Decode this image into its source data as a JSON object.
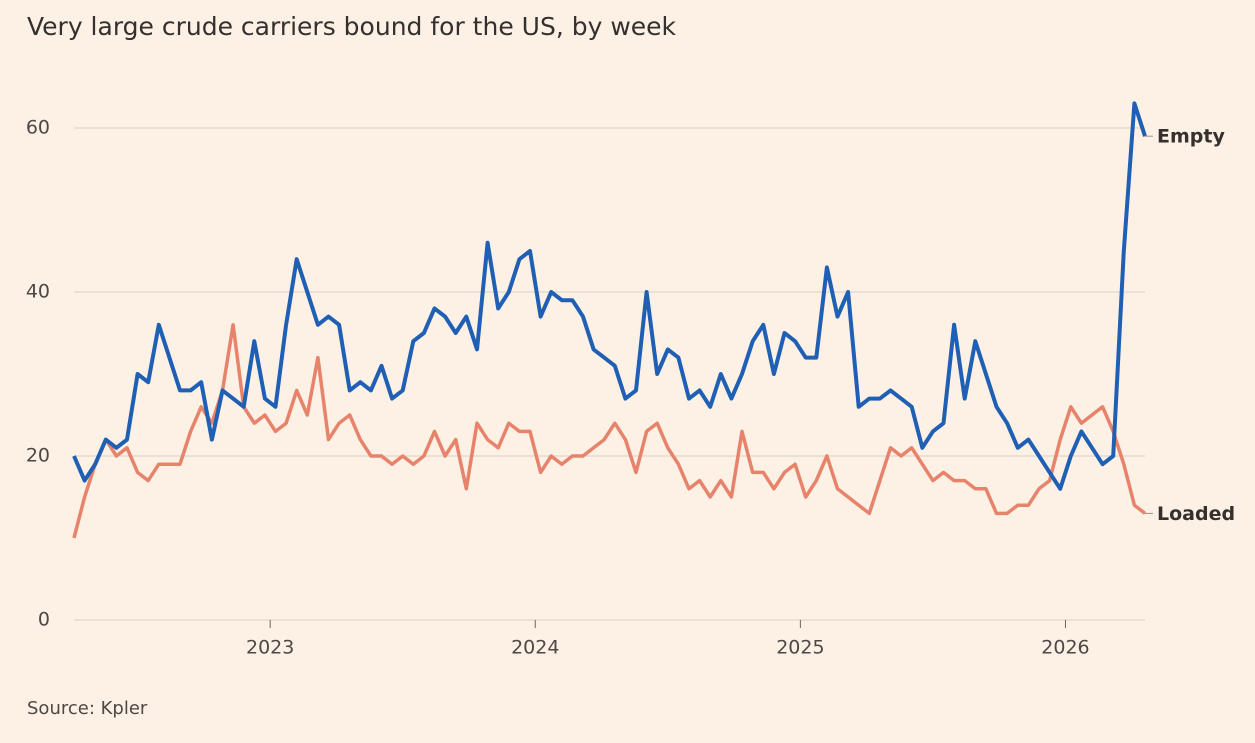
{
  "chart_data": {
    "type": "line",
    "title": "Very large crude carriers bound for the US, by week",
    "source": "Source: Kpler",
    "x": [
      2022.26,
      2022.3,
      2022.34,
      2022.38,
      2022.42,
      2022.46,
      2022.5,
      2022.54,
      2022.58,
      2022.62,
      2022.66,
      2022.7,
      2022.74,
      2022.78,
      2022.82,
      2022.86,
      2022.9,
      2022.94,
      2022.98,
      2023.02,
      2023.06,
      2023.1,
      2023.14,
      2023.18,
      2023.22,
      2023.26,
      2023.3,
      2023.34,
      2023.38,
      2023.42,
      2023.46,
      2023.5,
      2023.54,
      2023.58,
      2023.62,
      2023.66,
      2023.7,
      2023.74,
      2023.78,
      2023.82,
      2023.86,
      2023.9,
      2023.94,
      2023.98,
      2024.02,
      2024.06,
      2024.1,
      2024.14,
      2024.18,
      2024.22,
      2024.26,
      2024.3,
      2024.34,
      2024.38,
      2024.42,
      2024.46,
      2024.5,
      2024.54,
      2024.58,
      2024.62,
      2024.66,
      2024.7,
      2024.74,
      2024.78,
      2024.82,
      2024.86,
      2024.9,
      2024.94,
      2024.98,
      2025.02,
      2025.06,
      2025.1,
      2025.14,
      2025.18,
      2025.22,
      2025.26,
      2025.3,
      2025.34,
      2025.38,
      2025.42,
      2025.46,
      2025.5,
      2025.54,
      2025.58,
      2025.62,
      2025.66,
      2025.7,
      2025.74,
      2025.78,
      2025.82,
      2025.86,
      2025.9,
      2025.94,
      2025.98,
      2026.02,
      2026.06,
      2026.1,
      2026.14,
      2026.18,
      2026.22,
      2026.26,
      2026.3
    ],
    "series": [
      {
        "name": "Loaded",
        "color": "#e8836b",
        "values": [
          10,
          15,
          19,
          22,
          20,
          21,
          18,
          17,
          19,
          19,
          19,
          23,
          26,
          24,
          28,
          36,
          26,
          24,
          25,
          23,
          24,
          28,
          25,
          32,
          22,
          24,
          25,
          22,
          20,
          20,
          19,
          20,
          19,
          20,
          23,
          20,
          22,
          16,
          24,
          22,
          21,
          24,
          23,
          23,
          18,
          20,
          19,
          20,
          20,
          21,
          22,
          24,
          22,
          18,
          23,
          24,
          21,
          19,
          16,
          17,
          15,
          17,
          15,
          23,
          18,
          18,
          16,
          18,
          19,
          15,
          17,
          20,
          16,
          15,
          14,
          13,
          17,
          21,
          20,
          21,
          19,
          17,
          18,
          17,
          17,
          16,
          16,
          13,
          13,
          14,
          14,
          16,
          17,
          22,
          26,
          24,
          25,
          26,
          23,
          19,
          14,
          13
        ]
      },
      {
        "name": "Empty",
        "color": "#1f5fb4",
        "values": [
          20,
          17,
          19,
          22,
          21,
          22,
          30,
          29,
          36,
          32,
          28,
          28,
          29,
          22,
          28,
          27,
          26,
          34,
          27,
          26,
          36,
          44,
          40,
          36,
          37,
          36,
          28,
          29,
          28,
          31,
          27,
          28,
          34,
          35,
          38,
          37,
          35,
          37,
          33,
          46,
          38,
          40,
          44,
          45,
          37,
          40,
          39,
          39,
          37,
          33,
          32,
          31,
          27,
          28,
          40,
          30,
          33,
          32,
          27,
          28,
          26,
          30,
          27,
          30,
          34,
          36,
          30,
          35,
          34,
          32,
          32,
          43,
          37,
          40,
          26,
          27,
          27,
          28,
          27,
          26,
          21,
          23,
          24,
          36,
          27,
          34,
          30,
          26,
          24,
          21,
          22,
          20,
          18,
          16,
          20,
          23,
          21,
          19,
          20,
          45,
          63,
          59
        ]
      }
    ],
    "xlim": [
      2022.26,
      2026.3
    ],
    "xticks": [
      2023,
      2024,
      2025,
      2026
    ],
    "ylim": [
      0,
      65
    ],
    "yticks": [
      0,
      20,
      40,
      60
    ],
    "grid": true
  }
}
